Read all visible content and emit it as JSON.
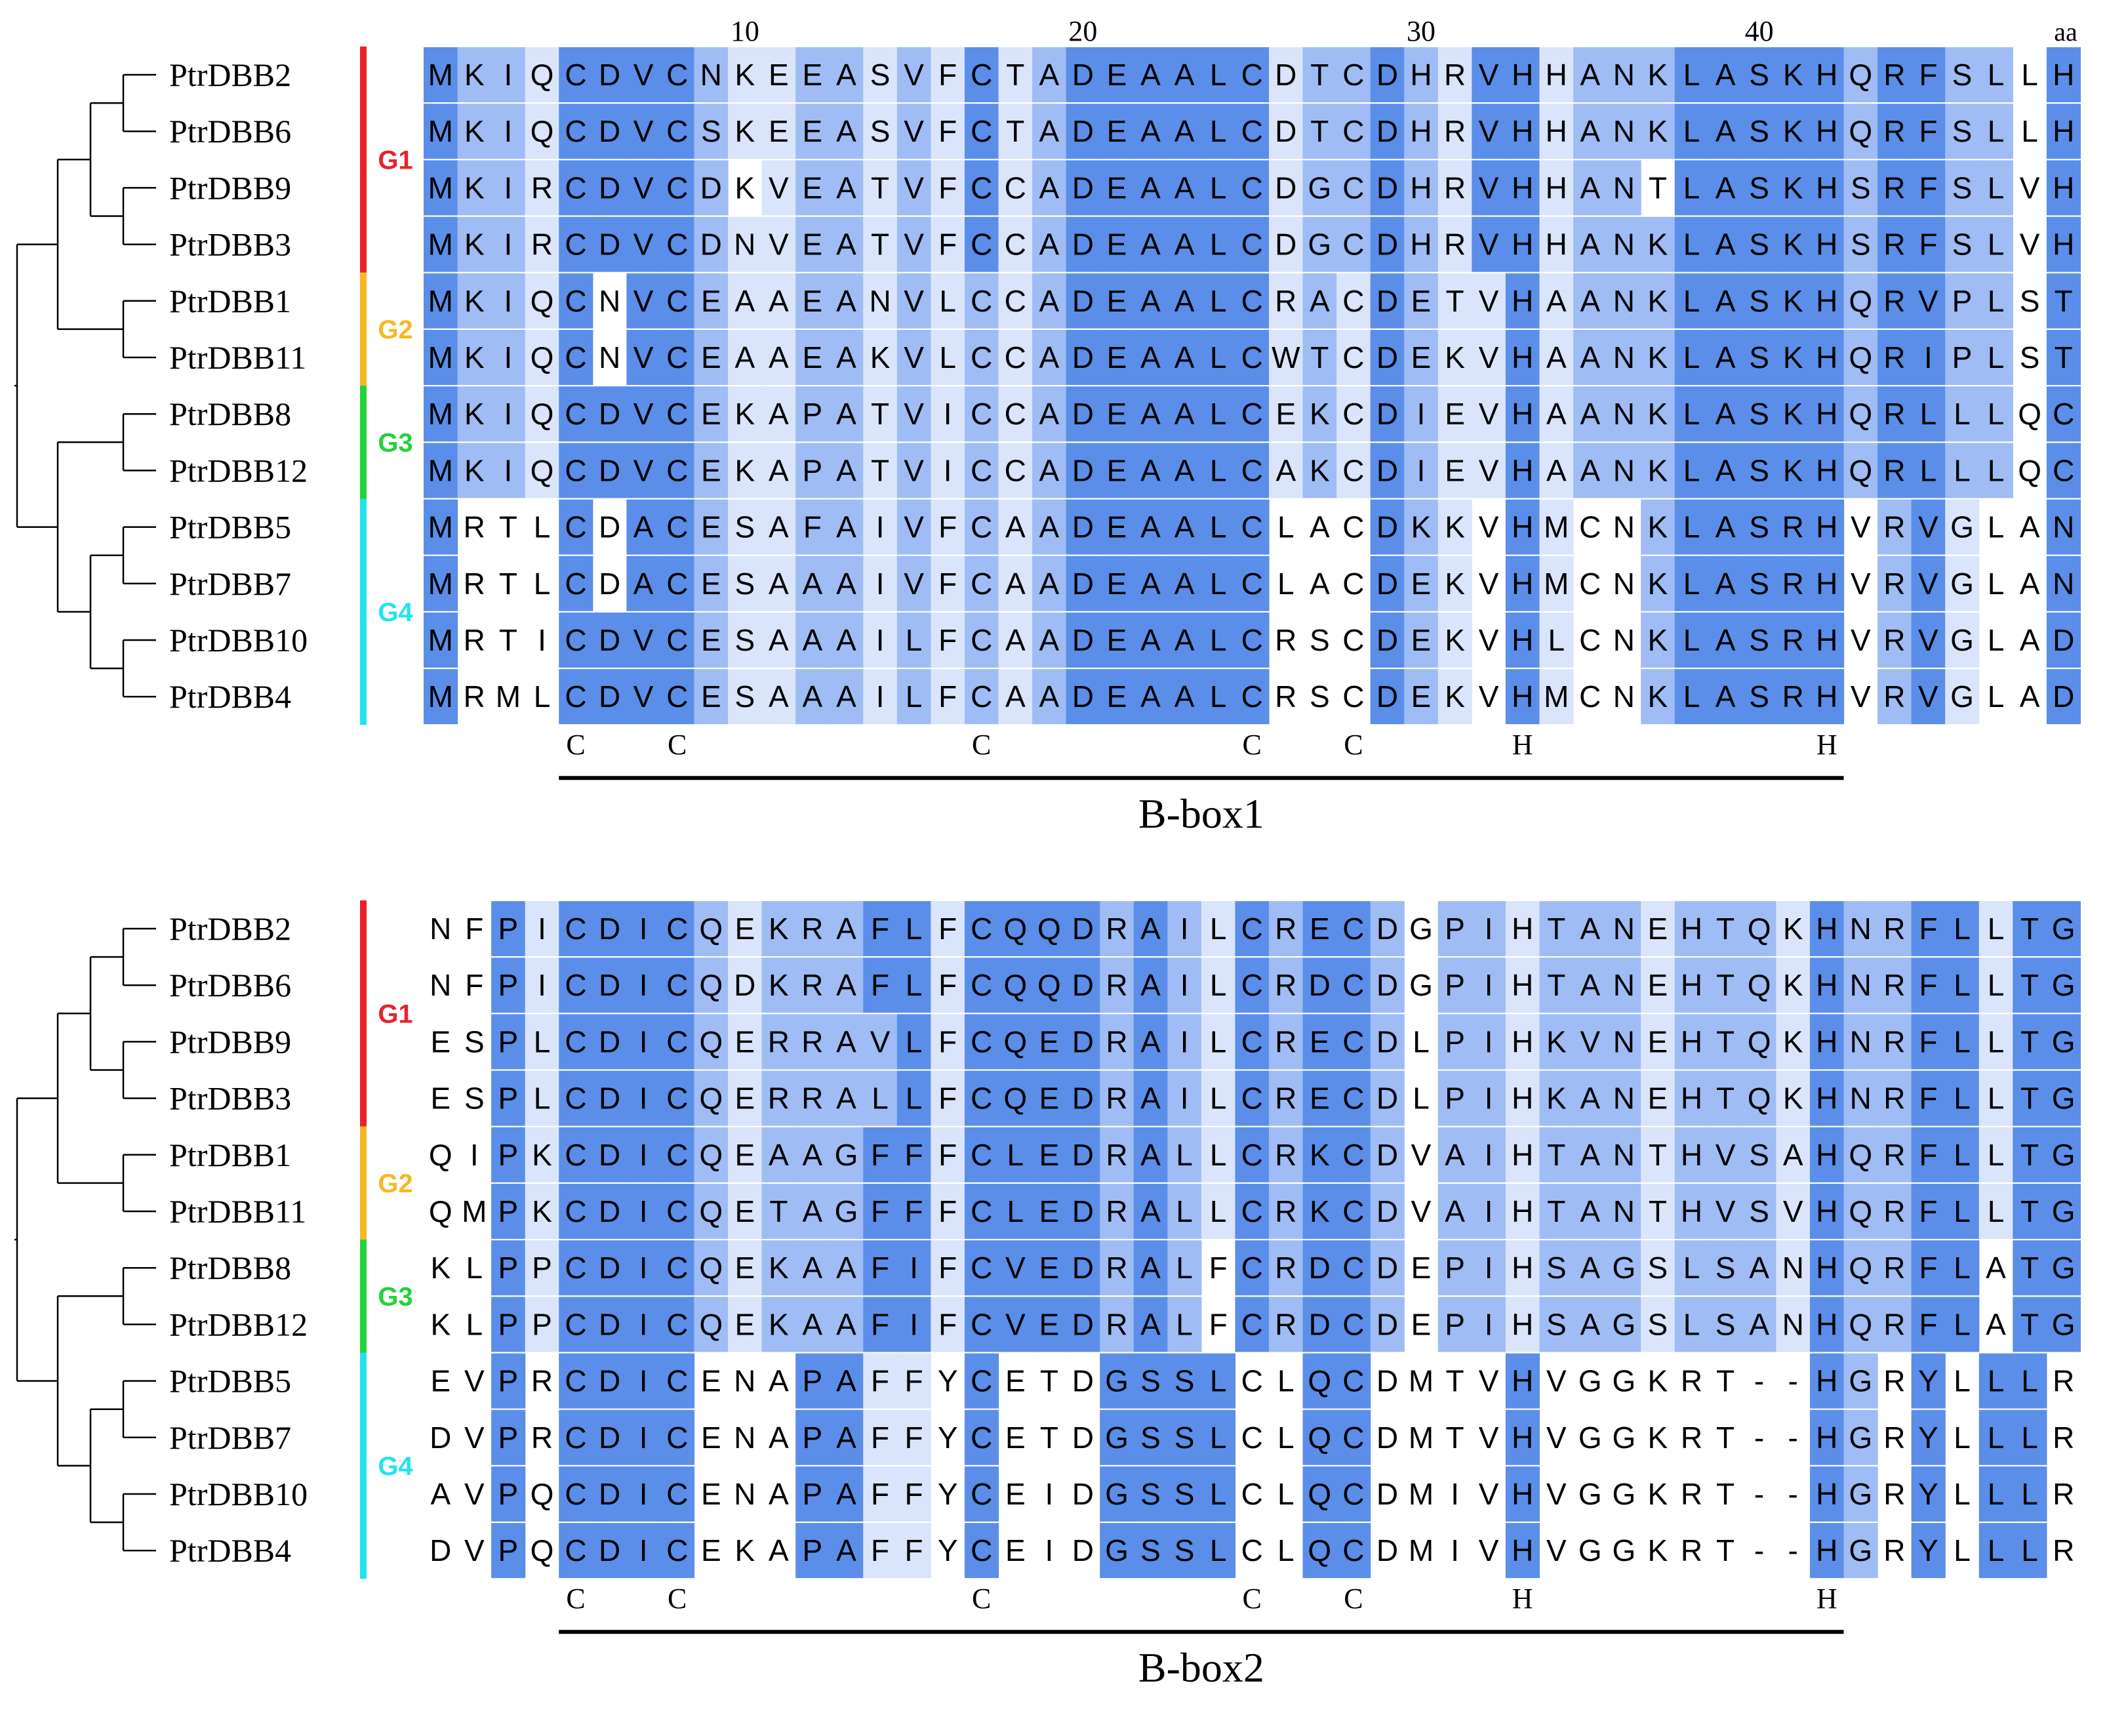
{
  "ruler": {
    "ticks": [
      {
        "col": 5,
        "label": ""
      },
      {
        "col": 10,
        "label": "10"
      },
      {
        "col": 15,
        "label": ""
      },
      {
        "col": 20,
        "label": "20"
      },
      {
        "col": 25,
        "label": ""
      },
      {
        "col": 30,
        "label": "30"
      },
      {
        "col": 35,
        "label": ""
      },
      {
        "col": 40,
        "label": "40"
      },
      {
        "col": 45,
        "label": ""
      }
    ],
    "unit_label": "aa"
  },
  "groups": [
    {
      "name": "G1",
      "color": "#e8232a",
      "rows": [
        0,
        3
      ]
    },
    {
      "name": "G2",
      "color": "#f7b822",
      "rows": [
        4,
        5
      ]
    },
    {
      "name": "G3",
      "color": "#22d33a",
      "rows": [
        6,
        7
      ]
    },
    {
      "name": "G4",
      "color": "#22e3ee",
      "rows": [
        8,
        11
      ]
    }
  ],
  "shading_colors": {
    "0": "#ffffff",
    "1": "#dae5fb",
    "2": "#9fbcf5",
    "3": "#5b8ee8"
  },
  "panels": [
    {
      "id": "bbox1",
      "domain_label": "B-box1",
      "sequences": [
        {
          "name": "PtrDBB2",
          "seq": "MKIQCDVCNKEEASVFCTADEAALCDTCDHRVHHANKLASKHQRFSLLH"
        },
        {
          "name": "PtrDBB6",
          "seq": "MKIQCDVCSKEEASVFCTADEAALCDTCDHRVHHANKLASKHQRFSLLH"
        },
        {
          "name": "PtrDBB9",
          "seq": "MKIRCDVCDKVEATVFCCADEAALCDGCDHRVHHANTLASKHSRFSLVH"
        },
        {
          "name": "PtrDBB3",
          "seq": "MKIRCDVCDNVEATVFCCADEAALCDGCDHRVHHANKLASKHSRFSLVH"
        },
        {
          "name": "PtrDBB1",
          "seq": "MKIQCNVCEAAEANVLCCADEAALCRACDETVHAANKLASKHQRVPLST"
        },
        {
          "name": "PtrDBB11",
          "seq": "MKIQCNVCEAAEAKVLCCADEAALCWTCDEKVHAANKLASKHQRIPLST"
        },
        {
          "name": "PtrDBB8",
          "seq": "MKIQCDVCEKAPATVICCADEAALCEKCDIEVHAANKLASKHQRLLLQC"
        },
        {
          "name": "PtrDBB12",
          "seq": "MKIQCDVCEKAPATVICCADEAALCAKCDIEVHAANKLASKHQRLLLQC"
        },
        {
          "name": "PtrDBB5",
          "seq": "MRTLCDACESAFAIVFCAADEAALCLACDKKVHMCNKLASRHVRVGLAN"
        },
        {
          "name": "PtrDBB7",
          "seq": "MRTLCDACESAAAIVFCAADEAALCLACDEKVHMCNKLASRHVRVGLAN"
        },
        {
          "name": "PtrDBB10",
          "seq": "MRTICDVCESAAAILFCAADEAALCRSCDEKVHLCNKLASRHVRVGLAD"
        },
        {
          "name": "PtrDBB4",
          "seq": "MRMLCDVCESAAAILFCAADEAALCRSCDEKVHMCNKLASRHVRVGLAD"
        }
      ],
      "shading": [
        "3221333321122121312333333122321331222333332332203",
        "3221333321122121312333333122321331222333332332203",
        "3221333320122121312333333122321331220333332332203",
        "3221333321122121312333333122321331222333332332203",
        "3221303321122121212333333121321131222333332332203",
        "3221303321122121212333333121321131222333332332203",
        "3221333321122121212333333121321131222333332332203",
        "3221333321122121212333333121321131222333332332203",
        "3000303321122121212333333000321031002333330231003",
        "3000303321122121212333333000321031002333330231003",
        "3000333321122121212333333000321031002333330231003",
        "3000333321122121212333333000321031002333330231003"
      ],
      "motif": [
        {
          "col": 5,
          "label": "C"
        },
        {
          "col": 8,
          "label": "C"
        },
        {
          "col": 17,
          "label": "C"
        },
        {
          "col": 25,
          "label": "C"
        },
        {
          "col": 28,
          "label": "C"
        },
        {
          "col": 33,
          "label": "H"
        },
        {
          "col": 42,
          "label": "H"
        }
      ]
    },
    {
      "id": "bbox2",
      "domain_label": "B-box2",
      "sequences": [
        {
          "name": "PtrDBB2",
          "seq": "NFPICDICQEKRAFLFCQQDRAILCRECDGPIHTANEHTQKHNRFLLTG"
        },
        {
          "name": "PtrDBB6",
          "seq": "NFPICDICQDKRAFLFCQQDRAILCRDCDGPIHTANEHTQKHNRFLLTG"
        },
        {
          "name": "PtrDBB9",
          "seq": "ESPLCDICQERRAVLFCQEDRAILCRECDLPIHKVNEHTQKHNRFLLTG"
        },
        {
          "name": "PtrDBB3",
          "seq": "ESPLCDICQERRALLFCQEDRAILCRECDLPIHKANEHTQKHNRFLLTG"
        },
        {
          "name": "PtrDBB1",
          "seq": "QIPKCDICQEAAGFFFCLEDRALLCRKCDVAIHTANTHVSAHQRFLLTG"
        },
        {
          "name": "PtrDBB11",
          "seq": "QMPKCDICQETAGFFFCLEDRALLCRKCDVAIHTANTHVSVHQRFLLTG"
        },
        {
          "name": "PtrDBB8",
          "seq": "KLPPCDICQEKAAFIFCVEDRALFCRDCDEPIHSAGSLSANHQRFLATG"
        },
        {
          "name": "PtrDBB12",
          "seq": "KLPPCDICQEKAAFIFCVEDRALFCRDCDEPIHSAGSLSANHQRFLATG"
        },
        {
          "name": "PtrDBB5",
          "seq": "EVPRCDICENAPAFFYCETDGSSLCLQCDMTVHVGGKRT--HGRYLLLR"
        },
        {
          "name": "PtrDBB7",
          "seq": "DVPRCDICENAPAFFYCETDGSSLCLQCDMTVHVGGKRT--HGRYLLLR"
        },
        {
          "name": "PtrDBB10",
          "seq": "AVPQCDICENAPAFFYCEIDGSSLCLQCDMIVHVGGKRT--HGRYLLLR"
        },
        {
          "name": "PtrDBB4",
          "seq": "DVPQCDICEKAPAFFYCEIDGSSLCLQCDMIVHVGGKRT--HGRYLLLR"
        }
      ],
      "shading": [
        "0031333321222331333323213233202212221222132233133",
        "0031333321222331333323213233202212221222132233133",
        "0031333321222231333323213233202212221222132233133",
        "0031333321222231333323213233202212221222132233133",
        "0031333321222331333323213233202212221222132233133",
        "0031333321222331333323213233202212221222132233133",
        "0031333321222331333323203233202212221222132233033",
        "0031333321222331333323203233202212221222132233033",
        "0030333300033110300033330033000030000000032030330",
        "0030333300033110300033330033000030000000032030330",
        "0030333300033110300033330033000030000000032030330",
        "0030333300033110300033330033000030000000032030330"
      ],
      "motif": [
        {
          "col": 5,
          "label": "C"
        },
        {
          "col": 8,
          "label": "C"
        },
        {
          "col": 17,
          "label": "C"
        },
        {
          "col": 25,
          "label": "C"
        },
        {
          "col": 28,
          "label": "C"
        },
        {
          "col": 33,
          "label": "H"
        },
        {
          "col": 42,
          "label": "H"
        }
      ]
    }
  ]
}
